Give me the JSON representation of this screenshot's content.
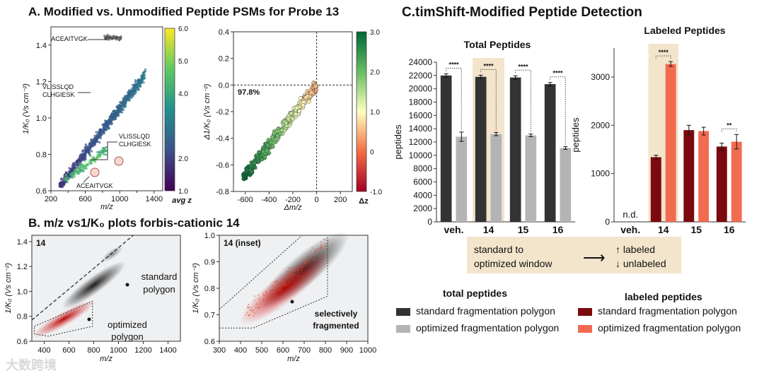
{
  "panels": {
    "a_title": "A. Modified vs. Unmodified Peptide PSMs for Probe 13",
    "b_title": "B. m/z vs1/K₀ plots forbis-cationic 14",
    "c_title": "C.timShift-Modified Peptide Detection"
  },
  "chart_data": [
    {
      "id": "A-left",
      "type": "scatter",
      "xlabel": "m/z",
      "ylabel": "1/K₀ (Vs cm⁻²)",
      "xlim": [
        200,
        1500
      ],
      "ylim": [
        0.6,
        1.5
      ],
      "xticks": [
        "200",
        "600",
        "1000",
        "1400"
      ],
      "xticks_minor": [
        "400",
        "800",
        "1200"
      ],
      "yticks": [
        "0.6",
        "0.8",
        "1.0",
        "1.2",
        "1.4"
      ],
      "colorbar": {
        "label": "avg z",
        "range": [
          1.0,
          6.0
        ],
        "ticks": [
          "1.0",
          "2.0",
          "4.0",
          "5.0",
          "6.0"
        ]
      },
      "annotations": [
        "ACEAITVGK",
        "VLISSLQD",
        "CLHGIESK",
        "VLISSLQD",
        "CLHGIESK",
        "ACEAITVGK"
      ]
    },
    {
      "id": "A-right",
      "type": "scatter",
      "xlabel": "Δm/z",
      "ylabel": "Δ1/K₀ (Vs cm⁻²)",
      "xlim": [
        -700,
        300
      ],
      "ylim": [
        -0.8,
        0.4
      ],
      "xticks": [
        "-600",
        "-400",
        "-200",
        "0",
        "200"
      ],
      "yticks": [
        "-0.8",
        "-0.6",
        "-0.4",
        "-0.2",
        "0.0",
        "0.2",
        "0.4"
      ],
      "colorbar": {
        "label": "Δz",
        "range": [
          -1.0,
          3.0
        ],
        "ticks": [
          "-1.0",
          "0",
          "1.0",
          "2.0",
          "3.0"
        ]
      },
      "annotation": "97.8%"
    },
    {
      "id": "B-left",
      "type": "heatmap",
      "panel_label": "14",
      "xlabel": "m/z",
      "ylabel": "1/K₀ (Vs cm⁻²)",
      "xlim": [
        300,
        1500
      ],
      "ylim": [
        0.6,
        1.45
      ],
      "xticks": [
        "400",
        "600",
        "800",
        "1000",
        "1200",
        "1400"
      ],
      "yticks": [
        "0.6",
        "0.8",
        "1.0",
        "1.2",
        "1.4"
      ],
      "labels": [
        "standard",
        "polygon",
        "optimized",
        "polygon"
      ]
    },
    {
      "id": "B-right",
      "type": "heatmap",
      "panel_label": "14 (inset)",
      "xlabel": "m/z",
      "ylabel": "1/K₀ (Vs cm⁻²)",
      "xlim": [
        300,
        1000
      ],
      "ylim": [
        0.6,
        1.0
      ],
      "xticks": [
        "300",
        "400",
        "500",
        "600",
        "700",
        "800",
        "900",
        "1000"
      ],
      "yticks": [
        "0.6",
        "0.7",
        "0.8",
        "0.9",
        "1.0"
      ],
      "labels": [
        "selectively",
        "fragmented"
      ]
    },
    {
      "id": "C-total",
      "type": "bar",
      "title": "Total Peptides",
      "ylabel": "peptides",
      "categories": [
        "veh.",
        "14",
        "15",
        "16"
      ],
      "ylim": [
        0,
        24000
      ],
      "yticks": [
        "0",
        "2000",
        "4000",
        "6000",
        "8000",
        "10000",
        "12000",
        "14000",
        "16000",
        "18000",
        "20000",
        "22000",
        "24000"
      ],
      "highlight": "14",
      "series": [
        {
          "name": "standard fragmentation polygon",
          "values": [
            22000,
            21800,
            21700,
            20700
          ],
          "errors": [
            250,
            250,
            250,
            250
          ]
        },
        {
          "name": "optimized fragmentation polygon",
          "values": [
            12800,
            13200,
            13000,
            11100
          ],
          "errors": [
            700,
            250,
            200,
            200
          ]
        }
      ],
      "significance": [
        "****",
        "****",
        "****",
        "****"
      ]
    },
    {
      "id": "C-labeled",
      "type": "bar",
      "title": "Labeled Peptides",
      "ylabel": "peptides",
      "categories": [
        "veh.",
        "14",
        "15",
        "16"
      ],
      "ylim": [
        0,
        3600
      ],
      "yticks": [
        "0",
        "1000",
        "2000",
        "3000"
      ],
      "highlight": "14",
      "na_label": "n.d.",
      "series": [
        {
          "name": "standard fragmentation polygon",
          "values": [
            0,
            1340,
            1900,
            1560
          ],
          "errors": [
            0,
            40,
            100,
            70
          ]
        },
        {
          "name": "optimized fragmentation polygon",
          "values": [
            0,
            3270,
            1880,
            1660
          ],
          "errors": [
            0,
            50,
            80,
            150
          ]
        }
      ],
      "significance": [
        "",
        "****",
        "",
        "**"
      ]
    }
  ],
  "callout": {
    "line1": "standard to",
    "line2": "optimized window",
    "up": "↑ labeled",
    "down": "↓ unlabeled"
  },
  "legend": {
    "total_header": "total peptides",
    "labeled_header": "labeled peptides",
    "items": [
      {
        "label": "standard fragmentation polygon",
        "color": "#333333"
      },
      {
        "label": "optimized fragmentation polygon",
        "color": "#b4b4b4"
      },
      {
        "label": "standard fragmentation polygon",
        "color": "#7a0a0e"
      },
      {
        "label": "optimized fragmentation polygon",
        "color": "#f26b4f"
      }
    ]
  },
  "watermark": "大数跨境"
}
